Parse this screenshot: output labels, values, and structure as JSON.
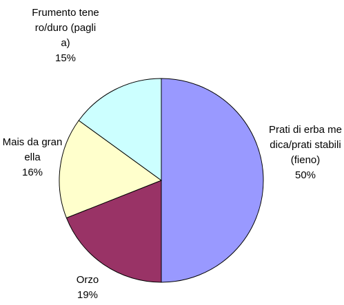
{
  "chart_data": {
    "type": "pie",
    "categories": [
      "Prati di erba medica/prati stabili(fieno)",
      "Orzo",
      "Mais da granella",
      "Frumento tenero/duro (paglia)"
    ],
    "values": [
      50,
      19,
      16,
      15
    ],
    "value_labels": [
      "50%",
      "19%",
      "16%",
      "15%"
    ],
    "colors": [
      "#9999ff",
      "#993366",
      "#ffffcc",
      "#ccffff"
    ]
  }
}
